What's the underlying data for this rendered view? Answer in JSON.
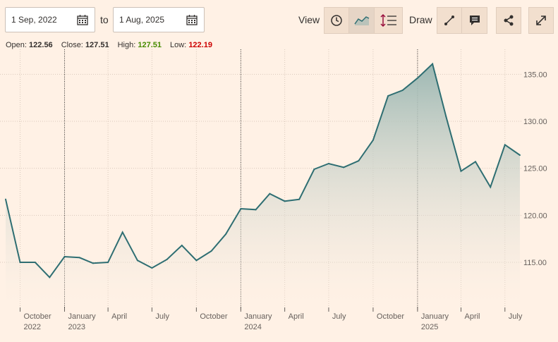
{
  "toolbar": {
    "from_date": "1 Sep, 2022",
    "to_label": "to",
    "to_date": "1 Aug, 2025",
    "view_label": "View",
    "draw_label": "Draw",
    "view_icons": [
      "clock-icon",
      "mountain-chart-icon",
      "comparison-chart-icon"
    ],
    "draw_icons": [
      "line-draw-icon",
      "annotation-icon"
    ],
    "share_icon": "share-icon",
    "expand_icon": "expand-icon"
  },
  "ohlc": {
    "open_label": "Open:",
    "open": "122.56",
    "close_label": "Close:",
    "close": "127.51",
    "high_label": "High:",
    "high": "127.51",
    "low_label": "Low:",
    "low": "122.19"
  },
  "colors": {
    "background": "#fff1e5",
    "line": "#2e6e72",
    "area_top": "#9db8b3",
    "high": "#458b00",
    "low": "#cc0000"
  },
  "chart_data": {
    "type": "area",
    "x": [
      "2022-09-01",
      "2022-10-01",
      "2022-11-01",
      "2022-12-01",
      "2023-01-01",
      "2023-02-01",
      "2023-03-01",
      "2023-04-01",
      "2023-05-01",
      "2023-06-01",
      "2023-07-01",
      "2023-08-01",
      "2023-09-01",
      "2023-10-01",
      "2023-11-01",
      "2023-12-01",
      "2024-01-01",
      "2024-02-01",
      "2024-03-01",
      "2024-04-01",
      "2024-05-01",
      "2024-06-01",
      "2024-07-01",
      "2024-08-01",
      "2024-09-01",
      "2024-10-01",
      "2024-11-01",
      "2024-12-01",
      "2025-01-01",
      "2025-02-01",
      "2025-03-01",
      "2025-04-01",
      "2025-05-01",
      "2025-06-01",
      "2025-07-01",
      "2025-08-01"
    ],
    "values": [
      121.7,
      115.0,
      115.0,
      113.4,
      115.6,
      115.5,
      114.9,
      115.0,
      118.2,
      115.2,
      114.4,
      115.3,
      116.8,
      115.2,
      116.2,
      118.0,
      120.7,
      120.6,
      122.3,
      121.5,
      121.7,
      124.9,
      125.5,
      125.1,
      125.8,
      128.0,
      132.7,
      133.3,
      134.6,
      136.1,
      130.5,
      124.7,
      125.7,
      123.0,
      127.5,
      126.4
    ],
    "y_ticks": [
      "115.00",
      "120.00",
      "125.00",
      "130.00",
      "135.00"
    ],
    "ylim": [
      110.5,
      137.5
    ],
    "x_ticks": [
      {
        "date": "2022-10-01",
        "label": "October",
        "sub": "2022"
      },
      {
        "date": "2023-01-01",
        "label": "January",
        "sub": "2023"
      },
      {
        "date": "2023-04-01",
        "label": "April",
        "sub": ""
      },
      {
        "date": "2023-07-01",
        "label": "July",
        "sub": ""
      },
      {
        "date": "2023-10-01",
        "label": "October",
        "sub": ""
      },
      {
        "date": "2024-01-01",
        "label": "January",
        "sub": "2024"
      },
      {
        "date": "2024-04-01",
        "label": "April",
        "sub": ""
      },
      {
        "date": "2024-07-01",
        "label": "July",
        "sub": ""
      },
      {
        "date": "2024-10-01",
        "label": "October",
        "sub": ""
      },
      {
        "date": "2025-01-01",
        "label": "January",
        "sub": "2025"
      },
      {
        "date": "2025-04-01",
        "label": "April",
        "sub": ""
      },
      {
        "date": "2025-07-01",
        "label": "July",
        "sub": ""
      }
    ],
    "year_boundaries": [
      "2023-01-01",
      "2024-01-01",
      "2025-01-01"
    ],
    "grid": true
  }
}
